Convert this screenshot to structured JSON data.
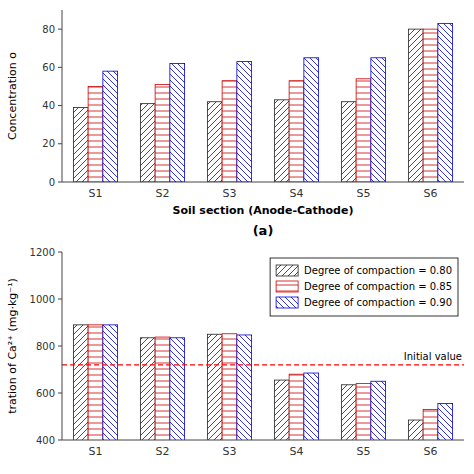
{
  "chart_data": [
    {
      "type": "bar",
      "categories": [
        "S1",
        "S2",
        "S3",
        "S4",
        "S5",
        "S6"
      ],
      "series": [
        {
          "color": "#222222",
          "values": [
            39,
            41,
            42,
            43,
            42,
            80
          ]
        },
        {
          "color": "#cc0000",
          "values": [
            50,
            51,
            53,
            53,
            54,
            80
          ]
        },
        {
          "color": "#0000cc",
          "values": [
            58,
            62,
            63,
            65,
            65,
            83
          ]
        }
      ],
      "ylabel": "Concentration o",
      "xlabel": "Soil section (Anode-Cathode)",
      "ylim": [
        0,
        90
      ],
      "yticks": [
        0,
        20,
        40,
        60,
        80
      ],
      "annotation": "(a)"
    },
    {
      "type": "bar",
      "categories": [
        "S1",
        "S2",
        "S3",
        "S4",
        "S5",
        "S6"
      ],
      "series": [
        {
          "name": "Degree of compaction = 0.80",
          "color": "#222222",
          "values": [
            890,
            835,
            850,
            655,
            635,
            485
          ]
        },
        {
          "name": "Degree of compaction = 0.85",
          "color": "#cc0000",
          "values": [
            890,
            838,
            852,
            680,
            640,
            530
          ]
        },
        {
          "name": "Degree of compaction = 0.90",
          "color": "#0000cc",
          "values": [
            890,
            835,
            847,
            685,
            650,
            555
          ]
        }
      ],
      "ylabel": "tration of Ca²⁺ (mg·kg⁻¹)",
      "ylim": [
        400,
        1200
      ],
      "yticks": [
        400,
        600,
        800,
        1000,
        1200
      ],
      "hline": {
        "value": 720,
        "label": "Initial value",
        "color": "red"
      },
      "legend": "upper-right"
    }
  ]
}
